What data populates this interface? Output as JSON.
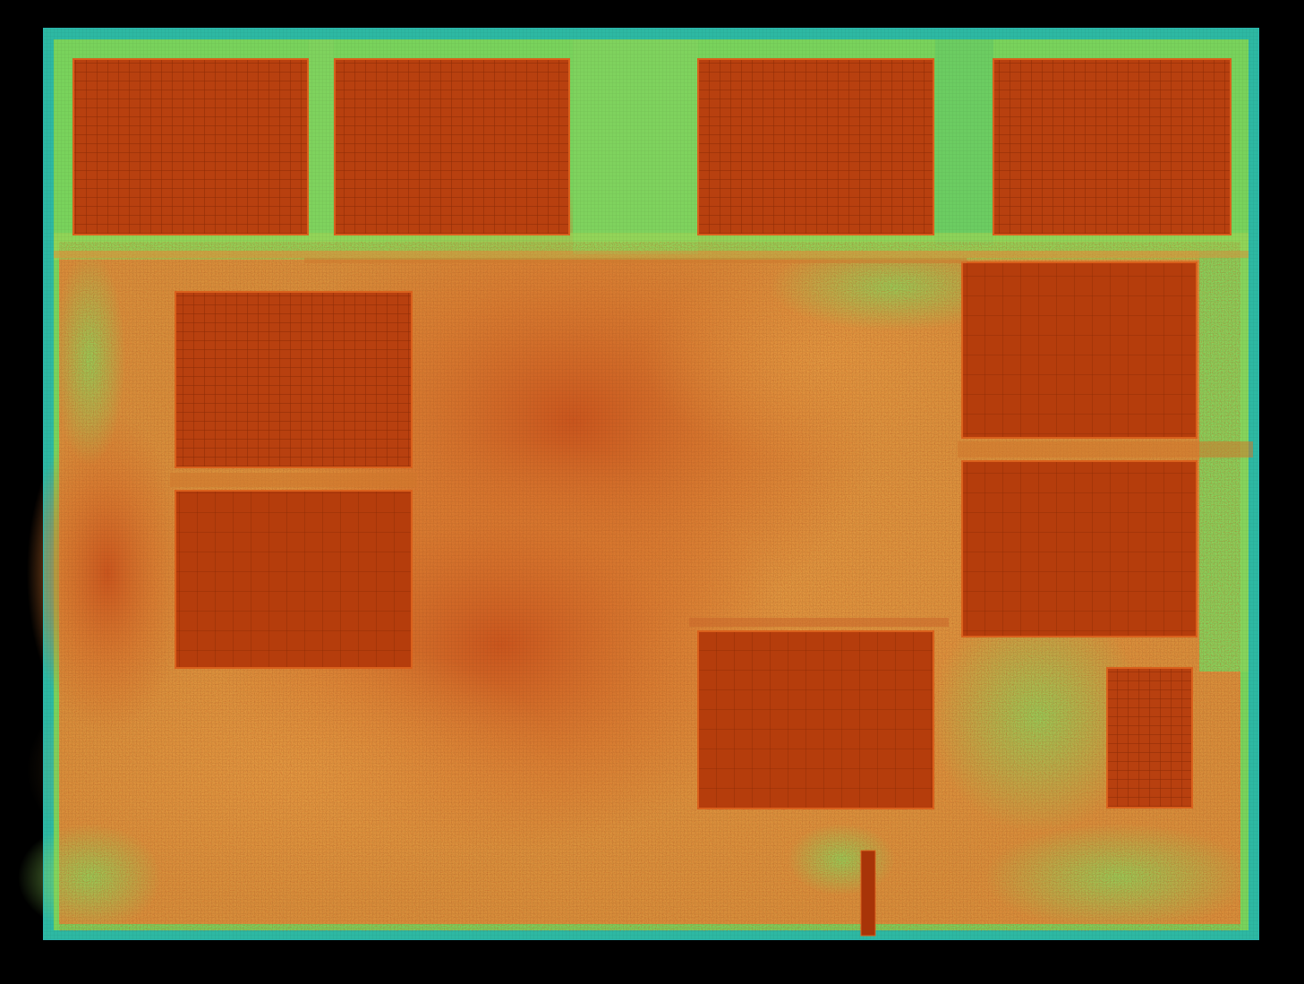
{
  "view": {
    "background_color": "#000000",
    "heatmap_palette": {
      "low": "#1fb89a",
      "low_mid": "#7fd65a",
      "mid": "#e6b54a",
      "high": "#d9601c",
      "max": "#b83a0a",
      "grid_line": "#9c2e05",
      "die_outline": "#2ab7b0"
    }
  },
  "die": {
    "name": "die-heatmap",
    "macro_count": 11
  }
}
